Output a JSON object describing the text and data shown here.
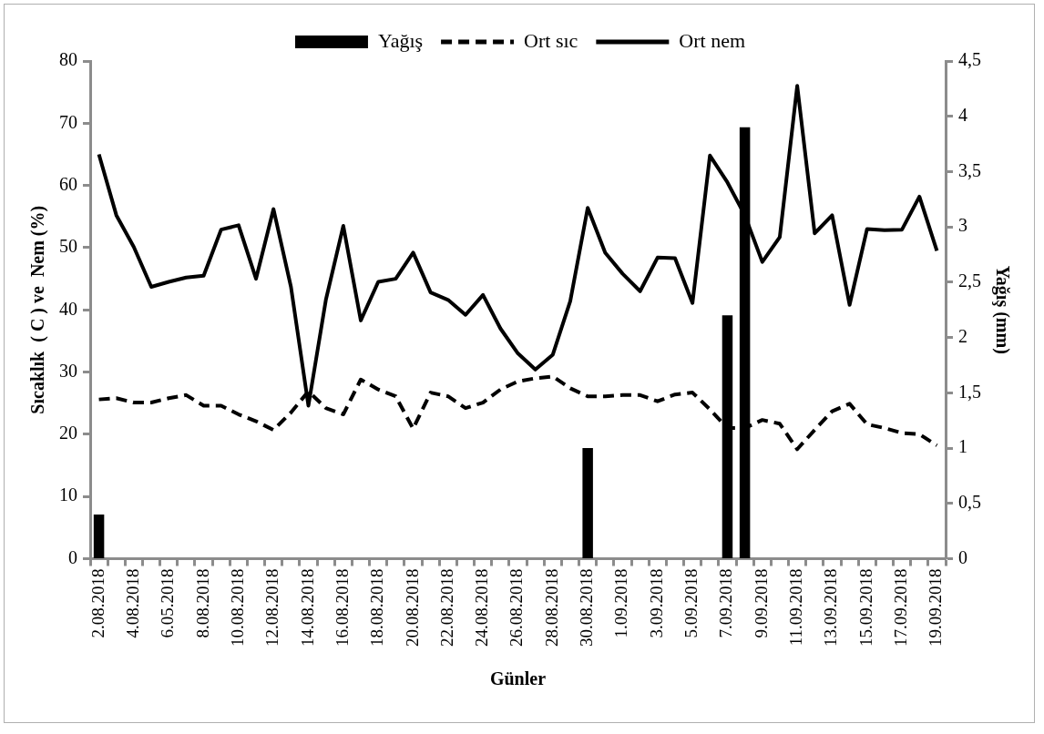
{
  "chart_data": {
    "type": "line",
    "xlabel": "Günler",
    "ylabel": "Sıcaklık  ( C ) ve  Nem (%)",
    "y2label": "Yağış (mm)",
    "categories": [
      "2.08.2018",
      null,
      "4.08.2018",
      null,
      "6.05.2018",
      null,
      "8.08.2018",
      null,
      "10.08.2018",
      null,
      "12.08.2018",
      null,
      "14.08.2018",
      null,
      "16.08.2018",
      null,
      "18.08.2018",
      null,
      "20.08.2018",
      null,
      "22.08.2018",
      null,
      "24.08.2018",
      null,
      "26.08.2018",
      null,
      "28.08.2018",
      null,
      "30.08.2018",
      null,
      "1.09.2018",
      null,
      "3.09.2018",
      null,
      "5.09.2018",
      null,
      "7.09.2018",
      null,
      "9.09.2018",
      null,
      "11.09.2018",
      null,
      "13.09.2018",
      null,
      "15.09.2018",
      null,
      "17.09.2018",
      null,
      "19.09.2018"
    ],
    "series": [
      {
        "name": "Yağış",
        "type": "bar",
        "axis": "y2",
        "color": "#000000",
        "values": [
          0.4,
          0,
          0,
          0,
          0,
          0,
          0,
          0,
          0,
          0,
          0,
          0,
          0,
          0,
          0,
          0,
          0,
          0,
          0,
          0,
          0,
          0,
          0,
          0,
          0,
          0,
          0,
          0,
          1.0,
          0,
          0,
          0,
          0,
          0,
          0,
          0,
          2.2,
          3.9,
          0,
          0,
          0,
          0,
          0,
          0,
          0,
          0,
          0,
          0,
          0
        ]
      },
      {
        "name": "Ort sıc",
        "line_style": "dashed",
        "color": "#000000",
        "values": [
          25.6,
          25.8,
          25.1,
          25.1,
          25.8,
          26.3,
          24.6,
          24.6,
          23.2,
          22.1,
          20.7,
          23.5,
          26.9,
          24.2,
          23.2,
          28.8,
          27.2,
          26.1,
          20.9,
          26.7,
          26.1,
          24.2,
          25.1,
          27.2,
          28.5,
          29.0,
          29.3,
          27.4,
          26.1,
          26.1,
          26.3,
          26.3,
          25.3,
          26.4,
          26.7,
          24.0,
          21.0,
          21.0,
          22.3,
          21.7,
          17.6,
          20.7,
          23.7,
          24.9,
          21.6,
          21.0,
          20.2,
          20.0,
          18.2
        ]
      },
      {
        "name": "Ort nem",
        "line_style": "solid",
        "color": "#000000",
        "values": [
          65.0,
          55.2,
          50.1,
          43.7,
          44.5,
          45.2,
          45.5,
          52.9,
          53.6,
          45.0,
          56.2,
          43.7,
          24.6,
          41.6,
          53.5,
          38.3,
          44.5,
          45.0,
          49.2,
          42.8,
          41.6,
          39.2,
          42.4,
          37.0,
          33.0,
          30.4,
          32.8,
          41.4,
          56.4,
          49.2,
          45.8,
          43.0,
          48.4,
          48.3,
          41.1,
          64.8,
          60.5,
          55.2,
          47.7,
          51.7,
          76.0,
          52.3,
          55.2,
          40.8,
          53.0,
          52.8,
          52.9,
          58.2,
          49.5
        ]
      }
    ],
    "ylim": [
      0,
      80
    ],
    "yticks": [
      0,
      10,
      20,
      30,
      40,
      50,
      60,
      70,
      80
    ],
    "y2lim": [
      0,
      4.5
    ],
    "y2ticks": [
      0,
      {
        "value": 0.5,
        "label": "0,5"
      },
      1,
      {
        "value": 1.5,
        "label": "1,5"
      },
      2,
      {
        "value": 2.5,
        "label": "2,5"
      },
      3,
      {
        "value": 3.5,
        "label": "3,5"
      },
      4,
      {
        "value": 4.5,
        "label": "4,5"
      }
    ],
    "grid": false,
    "legend": "top",
    "marker": "none"
  }
}
